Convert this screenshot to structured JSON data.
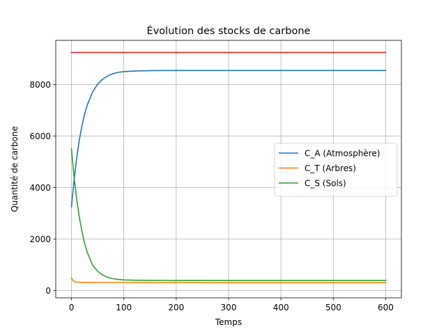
{
  "chart_data": {
    "type": "line",
    "title": "Évolution des stocks de carbone",
    "xlabel": "Temps",
    "ylabel": "Quantité de carbone",
    "xlim": [
      -30,
      630
    ],
    "ylim": [
      -280,
      9720
    ],
    "xticks": [
      0,
      100,
      200,
      300,
      400,
      500,
      600
    ],
    "yticks": [
      0,
      2000,
      4000,
      6000,
      8000
    ],
    "grid": true,
    "legend_position": "center-right",
    "series": [
      {
        "name": "C_A (Atmosphère)",
        "color": "#1f77b4",
        "in_legend": true,
        "x": [
          0,
          5,
          10,
          15,
          20,
          25,
          30,
          40,
          50,
          60,
          70,
          80,
          90,
          100,
          120,
          140,
          160,
          180,
          200,
          250,
          300,
          400,
          500,
          600
        ],
        "y": [
          3250,
          4300,
          5150,
          5850,
          6400,
          6850,
          7200,
          7700,
          8020,
          8220,
          8350,
          8430,
          8480,
          8505,
          8530,
          8540,
          8545,
          8548,
          8550,
          8550,
          8550,
          8550,
          8550,
          8550
        ]
      },
      {
        "name": "C_T (Arbres)",
        "color": "#ff7f0e",
        "in_legend": true,
        "x": [
          0,
          2,
          4,
          6,
          8,
          10,
          15,
          20,
          30,
          50,
          100,
          200,
          300,
          400,
          500,
          600
        ],
        "y": [
          500,
          420,
          370,
          345,
          335,
          330,
          325,
          322,
          320,
          318,
          315,
          312,
          310,
          310,
          310,
          310
        ]
      },
      {
        "name": "C_S (Sols)",
        "color": "#2ca02c",
        "in_legend": true,
        "x": [
          0,
          5,
          10,
          15,
          20,
          25,
          30,
          40,
          50,
          60,
          70,
          80,
          90,
          100,
          120,
          140,
          160,
          180,
          200,
          250,
          300,
          400,
          500,
          600
        ],
        "y": [
          5500,
          4400,
          3550,
          2850,
          2300,
          1850,
          1500,
          1000,
          750,
          600,
          510,
          460,
          430,
          415,
          405,
          400,
          398,
          396,
          395,
          395,
          395,
          395,
          395,
          395
        ]
      },
      {
        "name": "",
        "color": "#d62728",
        "in_legend": false,
        "x": [
          0,
          600
        ],
        "y": [
          9250,
          9250
        ]
      }
    ]
  }
}
